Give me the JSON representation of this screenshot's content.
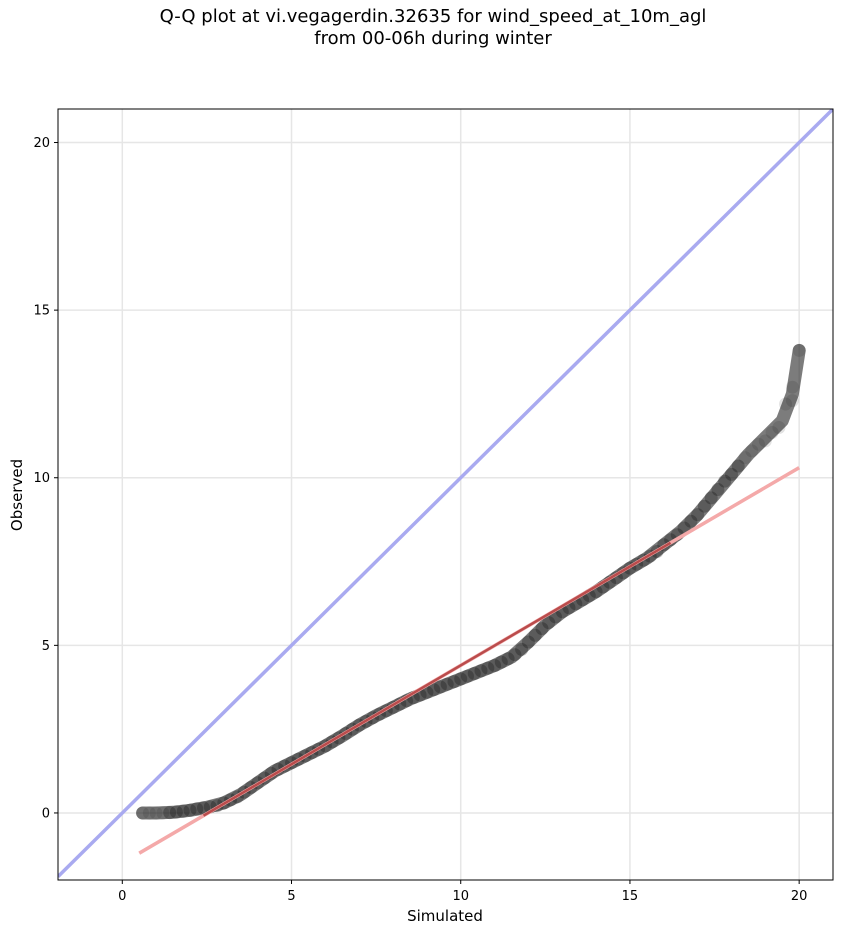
{
  "chart_data": {
    "type": "scatter",
    "title": "Q-Q plot at vi.vegagerdin.32635 for wind_speed_at_10m_agl",
    "subtitle": "from 00-06h during winter",
    "xlabel": "Simulated",
    "ylabel": "Observed",
    "xlim": [
      -1.9,
      21.0
    ],
    "ylim": [
      -2.0,
      21.0
    ],
    "xticks": [
      "0",
      "5",
      "10",
      "15",
      "20"
    ],
    "yticks": [
      "0",
      "5",
      "10",
      "15",
      "20"
    ],
    "grid": true,
    "legend": "none",
    "reference_line": {
      "label": "",
      "x": [
        -1.9,
        21.0
      ],
      "y": [
        -1.9,
        21.0
      ],
      "color": "#a9aaf0"
    },
    "fit_line": {
      "label": "",
      "x": [
        0.5,
        20.0
      ],
      "y": [
        -1.2,
        10.3
      ],
      "color": "#f4a9a9"
    },
    "quantile_curve": {
      "x": [
        0.6,
        1.0,
        1.5,
        2.0,
        2.5,
        3.0,
        3.5,
        4.0,
        4.5,
        5.0,
        5.5,
        6.0,
        6.5,
        7.0,
        7.5,
        8.0,
        8.5,
        9.0,
        9.5,
        10.0,
        10.5,
        11.0,
        11.5,
        12.0,
        12.5,
        13.0,
        13.5,
        14.0,
        14.5,
        15.0,
        15.5,
        16.0,
        16.5,
        17.0,
        17.5,
        18.0,
        18.5,
        19.0,
        19.5,
        19.8,
        20.0
      ],
      "y": [
        0.0,
        0.0,
        0.02,
        0.08,
        0.17,
        0.3,
        0.55,
        0.9,
        1.25,
        1.5,
        1.75,
        2.0,
        2.3,
        2.62,
        2.9,
        3.15,
        3.4,
        3.6,
        3.8,
        4.0,
        4.2,
        4.4,
        4.65,
        5.1,
        5.6,
        6.0,
        6.3,
        6.6,
        6.95,
        7.3,
        7.6,
        8.0,
        8.4,
        8.9,
        9.5,
        10.1,
        10.7,
        11.2,
        11.7,
        12.5,
        13.8
      ]
    },
    "observed": {
      "x": [
        0.6,
        0.8,
        1.0,
        1.2,
        1.4,
        1.6,
        1.8,
        2.0,
        2.2,
        2.4,
        2.6,
        2.8,
        3.0,
        3.2,
        3.4,
        3.6,
        3.8,
        4.0,
        4.2,
        4.4,
        4.6,
        4.8,
        5.0,
        5.2,
        5.4,
        5.6,
        5.8,
        6.0,
        6.2,
        6.4,
        6.6,
        6.8,
        7.0,
        7.2,
        7.4,
        7.6,
        7.8,
        8.0,
        8.2,
        8.4,
        8.6,
        8.8,
        9.0,
        9.2,
        9.4,
        9.6,
        9.8,
        10.0,
        10.2,
        10.4,
        10.6,
        10.8,
        11.0,
        11.2,
        11.4,
        11.6,
        11.8,
        12.0,
        12.2,
        12.4,
        12.6,
        12.8,
        13.0,
        13.2,
        13.4,
        13.6,
        13.8,
        14.0,
        14.2,
        14.4,
        14.6,
        14.8,
        15.0,
        15.2,
        15.4,
        15.6,
        15.8,
        16.0,
        16.2,
        16.4,
        16.6,
        16.8,
        17.0,
        17.2,
        17.4,
        17.6,
        17.8,
        18.0,
        18.2,
        18.4,
        18.6,
        18.8,
        19.0,
        19.2,
        19.4,
        19.6,
        19.8,
        19.8,
        20.0
      ],
      "y": [
        0.0,
        0.0,
        0.0,
        0.0,
        0.01,
        0.03,
        0.05,
        0.08,
        0.12,
        0.15,
        0.18,
        0.22,
        0.3,
        0.39,
        0.48,
        0.62,
        0.76,
        0.9,
        1.04,
        1.18,
        1.3,
        1.4,
        1.5,
        1.6,
        1.7,
        1.8,
        1.9,
        2.0,
        2.12,
        2.24,
        2.37,
        2.5,
        2.62,
        2.73,
        2.84,
        2.95,
        3.05,
        3.15,
        3.25,
        3.35,
        3.44,
        3.52,
        3.6,
        3.68,
        3.76,
        3.84,
        3.92,
        4.0,
        4.08,
        4.16,
        4.24,
        4.32,
        4.4,
        4.5,
        4.6,
        4.72,
        4.88,
        5.1,
        5.3,
        5.5,
        5.68,
        5.85,
        6.0,
        6.12,
        6.24,
        6.36,
        6.48,
        6.6,
        6.74,
        6.88,
        7.02,
        7.16,
        7.3,
        7.42,
        7.54,
        7.66,
        7.8,
        8.0,
        8.15,
        8.3,
        8.5,
        8.7,
        8.9,
        9.15,
        9.4,
        9.65,
        9.9,
        10.1,
        10.35,
        10.6,
        10.8,
        11.0,
        11.1,
        11.35,
        11.5,
        12.2,
        12.3,
        12.7,
        13.8
      ]
    }
  }
}
